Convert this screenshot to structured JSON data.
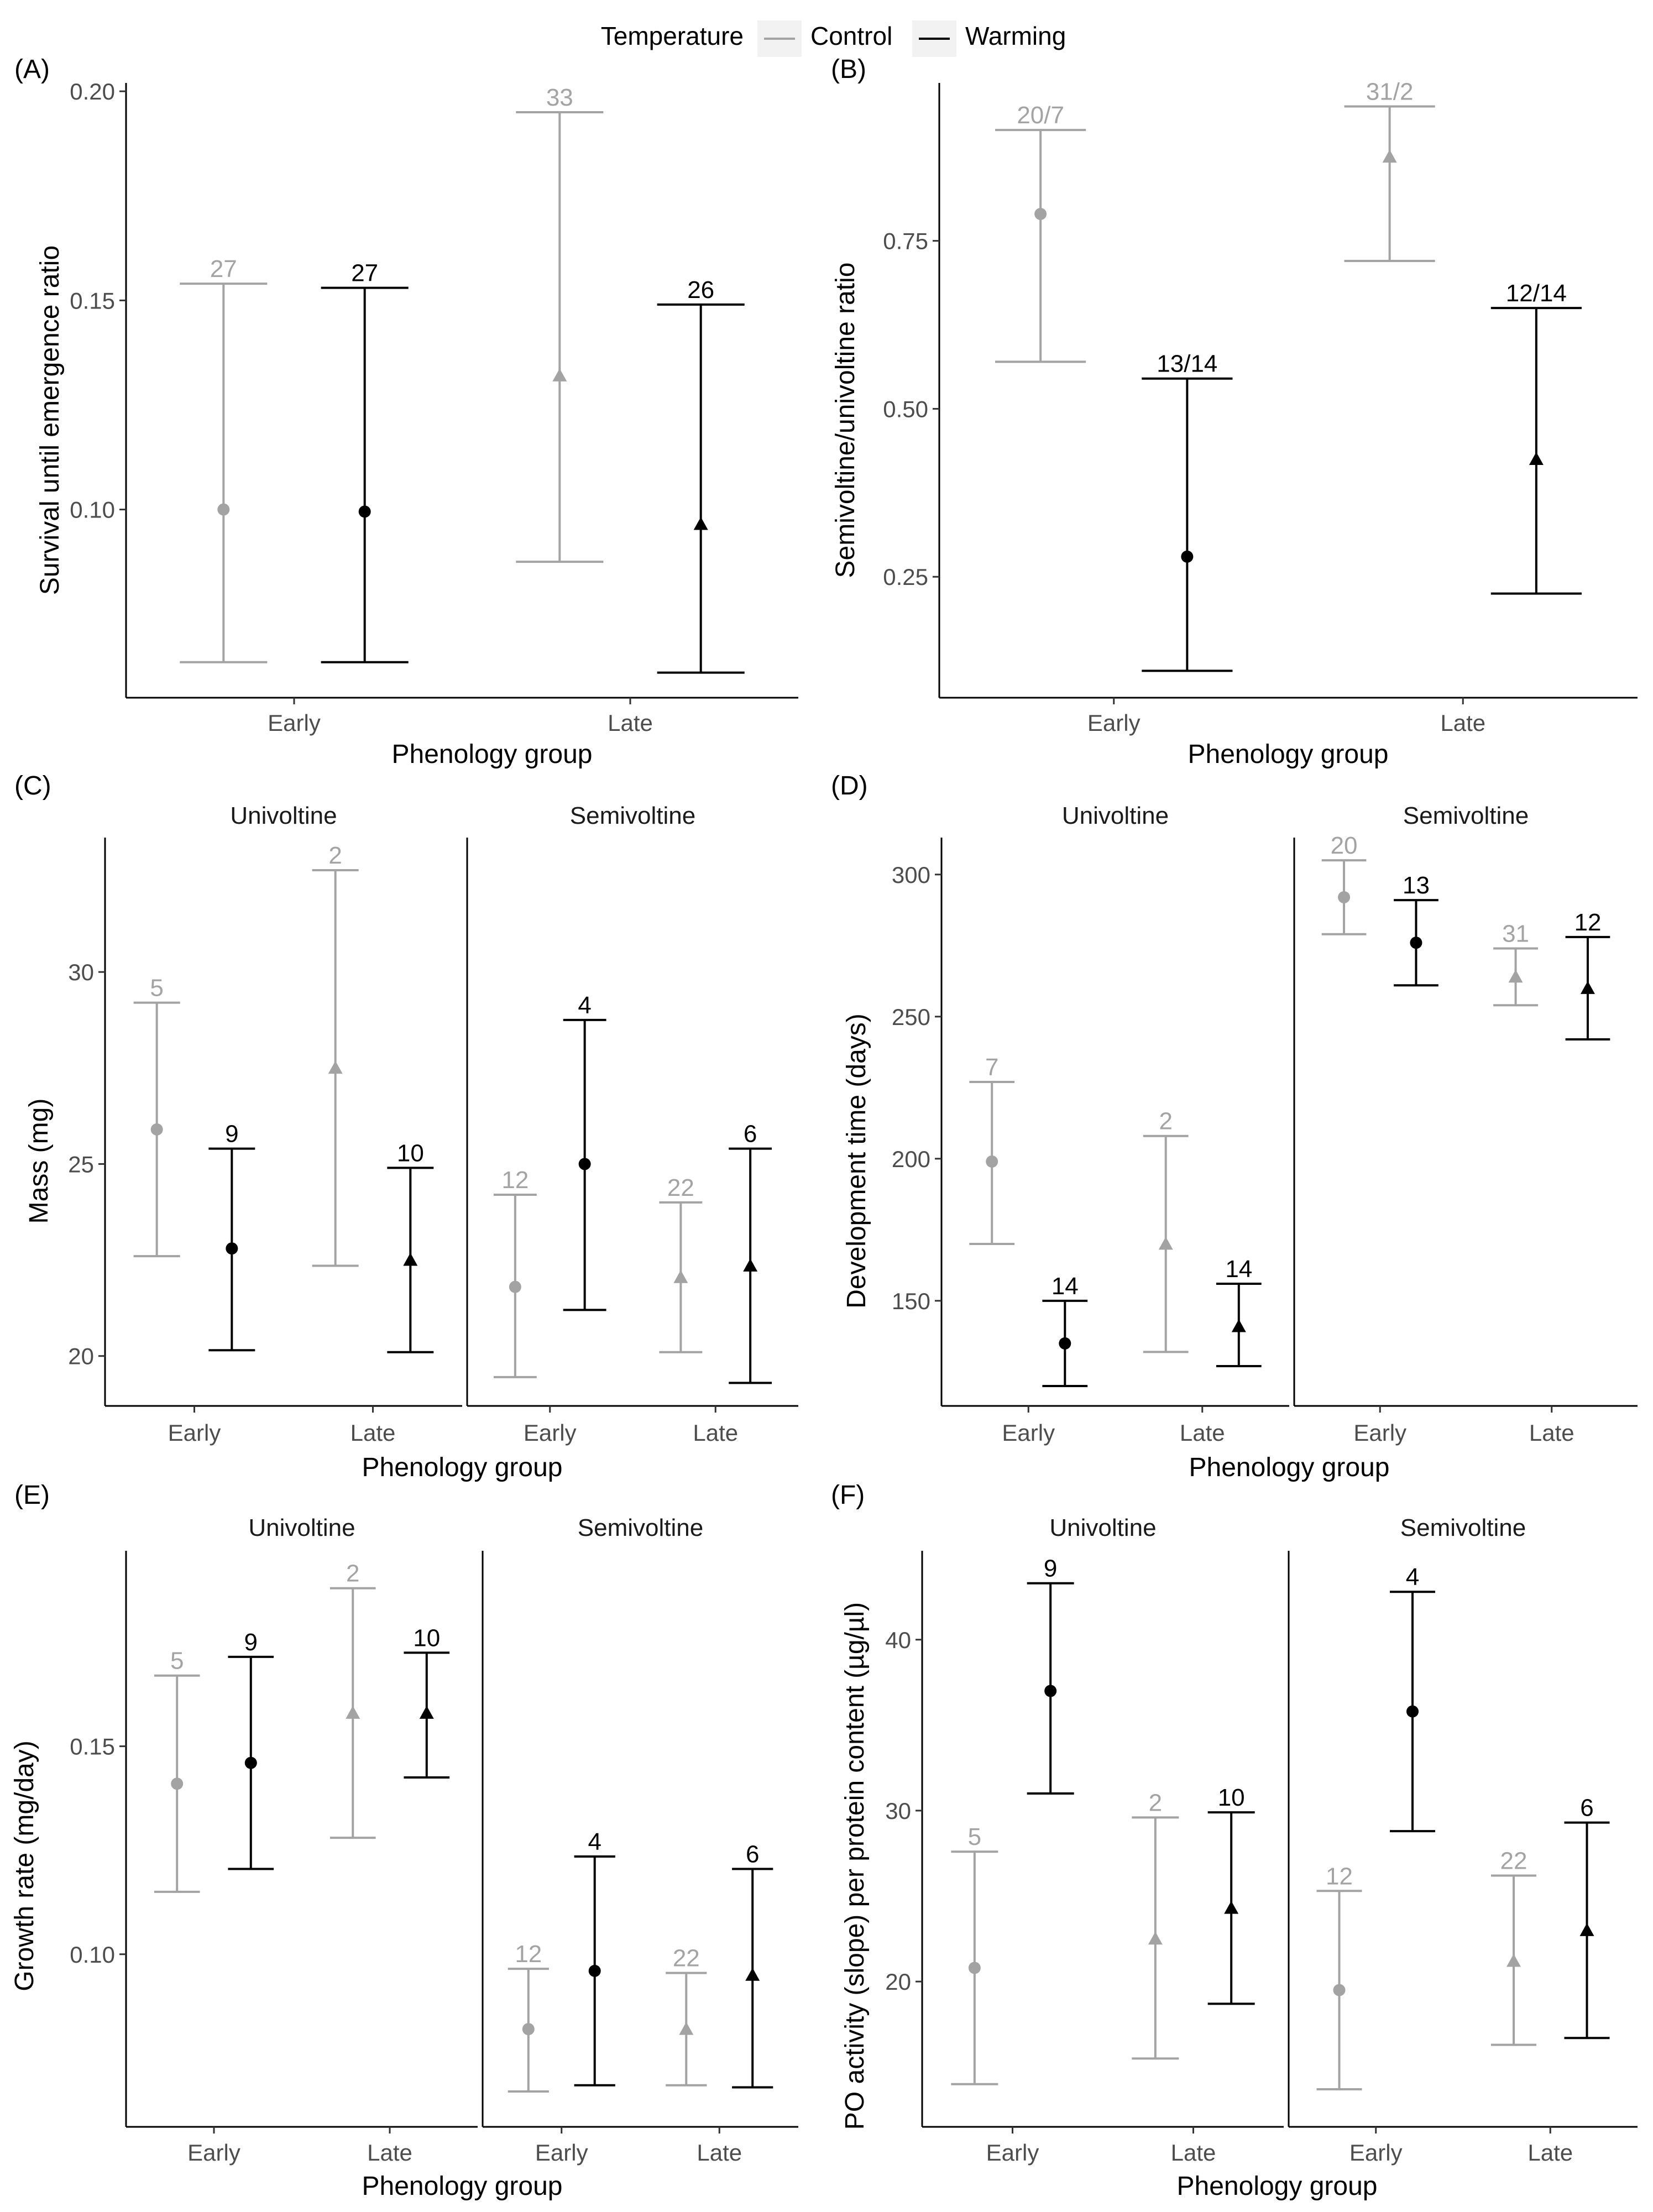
{
  "legend": {
    "title": "Temperature",
    "items": [
      {
        "label": "Control",
        "color": "#a3a3a3"
      },
      {
        "label": "Warming",
        "color": "#000000"
      }
    ]
  },
  "colors": {
    "Control": "#a3a3a3",
    "Warming": "#000000"
  },
  "shapes": {
    "Early": "circle",
    "Late": "triangle"
  },
  "chart_data": [
    {
      "id": "A",
      "panel_label": "(A)",
      "type": "errorbar",
      "ylabel": "Survival until emergence ratio",
      "xlabel": "Phenology group",
      "categories": [
        "Early",
        "Late"
      ],
      "ylim": [
        0.055,
        0.202
      ],
      "yticks": [
        0.1,
        0.15,
        0.2
      ],
      "ytick_labels": [
        "0.10",
        "0.15",
        "0.20"
      ],
      "facets": [
        {
          "title": "",
          "points": [
            {
              "group": "Early",
              "treatment": "Control",
              "mean": 0.1,
              "lower": 0.0635,
              "upper": 0.154,
              "n_label": "27"
            },
            {
              "group": "Early",
              "treatment": "Warming",
              "mean": 0.0995,
              "lower": 0.0635,
              "upper": 0.153,
              "n_label": "27"
            },
            {
              "group": "Late",
              "treatment": "Control",
              "mean": 0.132,
              "lower": 0.0875,
              "upper": 0.195,
              "n_label": "33"
            },
            {
              "group": "Late",
              "treatment": "Warming",
              "mean": 0.0965,
              "lower": 0.061,
              "upper": 0.149,
              "n_label": "26"
            }
          ]
        }
      ]
    },
    {
      "id": "B",
      "panel_label": "(B)",
      "type": "errorbar",
      "ylabel": "Semivoltine/univoltine ratio",
      "xlabel": "Phenology group",
      "categories": [
        "Early",
        "Late"
      ],
      "ylim": [
        0.07,
        0.985
      ],
      "yticks": [
        0.25,
        0.5,
        0.75
      ],
      "ytick_labels": [
        "0.25",
        "0.50",
        "0.75"
      ],
      "facets": [
        {
          "title": "",
          "points": [
            {
              "group": "Early",
              "treatment": "Control",
              "mean": 0.79,
              "lower": 0.57,
              "upper": 0.915,
              "n_label": "20/7"
            },
            {
              "group": "Early",
              "treatment": "Warming",
              "mean": 0.28,
              "lower": 0.11,
              "upper": 0.545,
              "n_label": "13/14"
            },
            {
              "group": "Late",
              "treatment": "Control",
              "mean": 0.875,
              "lower": 0.72,
              "upper": 0.95,
              "n_label": "31/2"
            },
            {
              "group": "Late",
              "treatment": "Warming",
              "mean": 0.425,
              "lower": 0.225,
              "upper": 0.65,
              "n_label": "12/14"
            }
          ]
        }
      ]
    },
    {
      "id": "C",
      "panel_label": "(C)",
      "type": "errorbar",
      "ylabel": "Mass (mg)",
      "xlabel": "Phenology group",
      "categories": [
        "Early",
        "Late"
      ],
      "ylim": [
        18.7,
        33.5
      ],
      "yticks": [
        20,
        25,
        30
      ],
      "ytick_labels": [
        "20",
        "25",
        "30"
      ],
      "facets": [
        {
          "title": "Univoltine",
          "points": [
            {
              "group": "Early",
              "treatment": "Control",
              "mean": 25.9,
              "lower": 22.6,
              "upper": 29.2,
              "n_label": "5"
            },
            {
              "group": "Early",
              "treatment": "Warming",
              "mean": 22.8,
              "lower": 20.15,
              "upper": 25.4,
              "n_label": "9"
            },
            {
              "group": "Late",
              "treatment": "Control",
              "mean": 27.5,
              "lower": 22.35,
              "upper": 32.65,
              "n_label": "2"
            },
            {
              "group": "Late",
              "treatment": "Warming",
              "mean": 22.5,
              "lower": 20.1,
              "upper": 24.9,
              "n_label": "10"
            }
          ]
        },
        {
          "title": "Semivoltine",
          "points": [
            {
              "group": "Early",
              "treatment": "Control",
              "mean": 21.8,
              "lower": 19.45,
              "upper": 24.2,
              "n_label": "12"
            },
            {
              "group": "Early",
              "treatment": "Warming",
              "mean": 25.0,
              "lower": 21.2,
              "upper": 28.75,
              "n_label": "4"
            },
            {
              "group": "Late",
              "treatment": "Control",
              "mean": 22.05,
              "lower": 20.1,
              "upper": 24.0,
              "n_label": "22"
            },
            {
              "group": "Late",
              "treatment": "Warming",
              "mean": 22.35,
              "lower": 19.3,
              "upper": 25.4,
              "n_label": "6"
            }
          ]
        }
      ]
    },
    {
      "id": "D",
      "panel_label": "(D)",
      "type": "errorbar",
      "ylabel": "Development time (days)",
      "xlabel": "Phenology group",
      "categories": [
        "Early",
        "Late"
      ],
      "ylim": [
        113,
        313
      ],
      "yticks": [
        150,
        200,
        250,
        300
      ],
      "ytick_labels": [
        "150",
        "200",
        "250",
        "300"
      ],
      "facets": [
        {
          "title": "Univoltine",
          "points": [
            {
              "group": "Early",
              "treatment": "Control",
              "mean": 199,
              "lower": 170,
              "upper": 227,
              "n_label": "7"
            },
            {
              "group": "Early",
              "treatment": "Warming",
              "mean": 135,
              "lower": 120,
              "upper": 150,
              "n_label": "14"
            },
            {
              "group": "Late",
              "treatment": "Control",
              "mean": 170,
              "lower": 132,
              "upper": 208,
              "n_label": "2"
            },
            {
              "group": "Late",
              "treatment": "Warming",
              "mean": 141,
              "lower": 127,
              "upper": 156,
              "n_label": "14"
            }
          ]
        },
        {
          "title": "Semivoltine",
          "points": [
            {
              "group": "Early",
              "treatment": "Control",
              "mean": 292,
              "lower": 279,
              "upper": 305,
              "n_label": "20"
            },
            {
              "group": "Early",
              "treatment": "Warming",
              "mean": 276,
              "lower": 261,
              "upper": 291,
              "n_label": "13"
            },
            {
              "group": "Late",
              "treatment": "Control",
              "mean": 264,
              "lower": 254,
              "upper": 274,
              "n_label": "31"
            },
            {
              "group": "Late",
              "treatment": "Warming",
              "mean": 260,
              "lower": 242,
              "upper": 278,
              "n_label": "12"
            }
          ]
        }
      ]
    },
    {
      "id": "E",
      "panel_label": "(E)",
      "type": "errorbar",
      "ylabel": "Growth rate (mg/day)",
      "xlabel": "Phenology group",
      "categories": [
        "Early",
        "Late"
      ],
      "ylim": [
        0.0585,
        0.197
      ],
      "yticks": [
        0.1,
        0.15
      ],
      "ytick_labels": [
        "0.10",
        "0.15"
      ],
      "facets": [
        {
          "title": "Univoltine",
          "points": [
            {
              "group": "Early",
              "treatment": "Control",
              "mean": 0.141,
              "lower": 0.115,
              "upper": 0.167,
              "n_label": "5"
            },
            {
              "group": "Early",
              "treatment": "Warming",
              "mean": 0.146,
              "lower": 0.1205,
              "upper": 0.1715,
              "n_label": "9"
            },
            {
              "group": "Late",
              "treatment": "Control",
              "mean": 0.158,
              "lower": 0.128,
              "upper": 0.188,
              "n_label": "2"
            },
            {
              "group": "Late",
              "treatment": "Warming",
              "mean": 0.158,
              "lower": 0.1425,
              "upper": 0.1725,
              "n_label": "10"
            }
          ]
        },
        {
          "title": "Semivoltine",
          "points": [
            {
              "group": "Early",
              "treatment": "Control",
              "mean": 0.082,
              "lower": 0.067,
              "upper": 0.0965,
              "n_label": "12"
            },
            {
              "group": "Early",
              "treatment": "Warming",
              "mean": 0.096,
              "lower": 0.0685,
              "upper": 0.1235,
              "n_label": "4"
            },
            {
              "group": "Late",
              "treatment": "Control",
              "mean": 0.082,
              "lower": 0.0685,
              "upper": 0.0955,
              "n_label": "22"
            },
            {
              "group": "Late",
              "treatment": "Warming",
              "mean": 0.095,
              "lower": 0.068,
              "upper": 0.1205,
              "n_label": "6"
            }
          ]
        }
      ]
    },
    {
      "id": "F",
      "panel_label": "(F)",
      "type": "errorbar",
      "ylabel": "PO activity (slope) per protein content (µg/µl)",
      "xlabel": "Phenology group",
      "categories": [
        "Early",
        "Late"
      ],
      "ylim": [
        11.5,
        45.2
      ],
      "yticks": [
        20,
        30,
        40
      ],
      "ytick_labels": [
        "20",
        "30",
        "40"
      ],
      "facets": [
        {
          "title": "Univoltine",
          "points": [
            {
              "group": "Early",
              "treatment": "Control",
              "mean": 20.8,
              "lower": 14.0,
              "upper": 27.6,
              "n_label": "5"
            },
            {
              "group": "Early",
              "treatment": "Warming",
              "mean": 37.0,
              "lower": 31.0,
              "upper": 43.3,
              "n_label": "9"
            },
            {
              "group": "Late",
              "treatment": "Control",
              "mean": 22.5,
              "lower": 15.5,
              "upper": 29.6,
              "n_label": "2"
            },
            {
              "group": "Late",
              "treatment": "Warming",
              "mean": 24.3,
              "lower": 18.7,
              "upper": 29.9,
              "n_label": "10"
            }
          ]
        },
        {
          "title": "Semivoltine",
          "points": [
            {
              "group": "Early",
              "treatment": "Control",
              "mean": 19.5,
              "lower": 13.7,
              "upper": 25.3,
              "n_label": "12"
            },
            {
              "group": "Early",
              "treatment": "Warming",
              "mean": 35.8,
              "lower": 28.8,
              "upper": 42.8,
              "n_label": "4"
            },
            {
              "group": "Late",
              "treatment": "Control",
              "mean": 21.2,
              "lower": 16.3,
              "upper": 26.2,
              "n_label": "22"
            },
            {
              "group": "Late",
              "treatment": "Warming",
              "mean": 23.0,
              "lower": 16.7,
              "upper": 29.3,
              "n_label": "6"
            }
          ]
        }
      ]
    }
  ]
}
